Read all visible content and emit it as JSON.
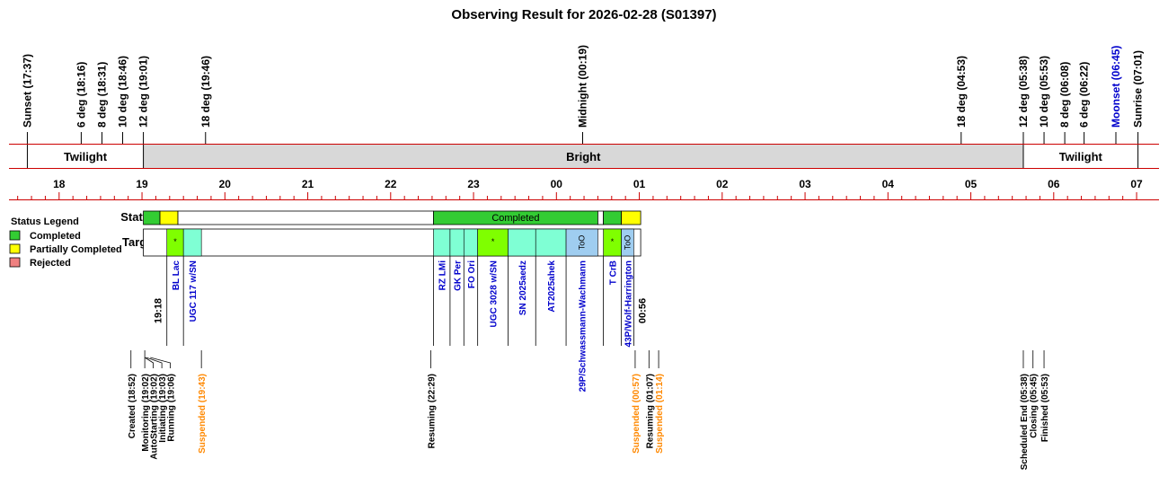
{
  "title": "Observing Result for 2026-02-28 (S01397)",
  "colors": {
    "completed": "#33cc33",
    "partial": "#ffff00",
    "rejected": "#f08080",
    "target_cyan": "#7fffd4",
    "target_green": "#7fff00",
    "target_too": "#9fcdf0",
    "bright_band": "#d8d8d8",
    "red_line": "#cc0000",
    "blue_text": "#0000cc",
    "orange_text": "#ff8800"
  },
  "chart_data": {
    "type": "table",
    "time_axis": {
      "start": "17:30",
      "end": "07:05",
      "hour_labels": [
        "18",
        "19",
        "20",
        "21",
        "22",
        "23",
        "00",
        "01",
        "02",
        "03",
        "04",
        "05",
        "06",
        "07"
      ]
    },
    "events": [
      {
        "label": "Sunset (17:37)",
        "time": "17:37",
        "color": "black"
      },
      {
        "label": "6 deg (18:16)",
        "time": "18:16",
        "color": "black"
      },
      {
        "label": "8 deg (18:31)",
        "time": "18:31",
        "color": "black"
      },
      {
        "label": "10 deg (18:46)",
        "time": "18:46",
        "color": "black"
      },
      {
        "label": "12 deg (19:01)",
        "time": "19:01",
        "color": "black"
      },
      {
        "label": "18 deg (19:46)",
        "time": "19:46",
        "color": "black"
      },
      {
        "label": "Midnight (00:19)",
        "time": "00:19",
        "color": "black"
      },
      {
        "label": "18 deg (04:53)",
        "time": "04:53",
        "color": "black"
      },
      {
        "label": "12 deg (05:38)",
        "time": "05:38",
        "color": "black"
      },
      {
        "label": "10 deg (05:53)",
        "time": "05:53",
        "color": "black"
      },
      {
        "label": "8 deg (06:08)",
        "time": "06:08",
        "color": "black"
      },
      {
        "label": "6 deg (06:22)",
        "time": "06:22",
        "color": "black"
      },
      {
        "label": "Moonset (06:45)",
        "time": "06:45",
        "color": "blue"
      },
      {
        "label": "Sunrise (07:01)",
        "time": "07:01",
        "color": "black"
      }
    ],
    "bands": [
      {
        "label": "Twilight",
        "start": "17:37",
        "end": "19:01",
        "shade": "white"
      },
      {
        "label": "Bright",
        "start": "19:01",
        "end": "05:38",
        "shade": "gray"
      },
      {
        "label": "Twilight",
        "start": "05:38",
        "end": "07:01",
        "shade": "white"
      }
    ],
    "row_labels": {
      "status": "Status",
      "targets": "Targets"
    },
    "legend": {
      "title": "Status Legend",
      "placement": "left",
      "items": [
        {
          "label": "Completed",
          "color": "#33cc33"
        },
        {
          "label": "Partially Completed",
          "color": "#ffff00"
        },
        {
          "label": "Rejected",
          "color": "#f08080"
        }
      ]
    },
    "status": [
      {
        "start": "19:01",
        "end": "19:13",
        "status": "completed",
        "label": ""
      },
      {
        "start": "19:13",
        "end": "19:26",
        "status": "partial",
        "label": ""
      },
      {
        "start": "19:26",
        "end": "22:31",
        "status": "none",
        "label": ""
      },
      {
        "start": "22:31",
        "end": "00:30",
        "status": "completed",
        "label": "Completed"
      },
      {
        "start": "00:30",
        "end": "00:34",
        "status": "none",
        "label": ""
      },
      {
        "start": "00:34",
        "end": "00:47",
        "status": "completed",
        "label": ""
      },
      {
        "start": "00:47",
        "end": "01:01",
        "status": "partial",
        "label": ""
      }
    ],
    "targets": [
      {
        "name": "BL Lac",
        "start": "19:18",
        "end": "19:30",
        "type": "green",
        "mark": "*"
      },
      {
        "name": "UGC 117 w/SN",
        "start": "19:30",
        "end": "19:43",
        "type": "cyan",
        "mark": ""
      },
      {
        "name": "RZ LMi",
        "start": "22:31",
        "end": "22:43",
        "type": "cyan",
        "mark": ""
      },
      {
        "name": "GK Per",
        "start": "22:43",
        "end": "22:53",
        "type": "cyan",
        "mark": ""
      },
      {
        "name": "FO Ori",
        "start": "22:53",
        "end": "23:03",
        "type": "cyan",
        "mark": ""
      },
      {
        "name": "UGC 3028 w/SN",
        "start": "23:03",
        "end": "23:25",
        "type": "green",
        "mark": "*"
      },
      {
        "name": "SN 2025aedz",
        "start": "23:25",
        "end": "23:45",
        "type": "cyan",
        "mark": ""
      },
      {
        "name": "AT2025ahek",
        "start": "23:45",
        "end": "24:07",
        "type": "cyan",
        "mark": ""
      },
      {
        "name": "29P/Schwassmann-Wachmann",
        "start": "24:07",
        "end": "24:30",
        "type": "too",
        "mark": "ToO"
      },
      {
        "name": "T CrB",
        "start": "24:34",
        "end": "24:47",
        "type": "green",
        "mark": "*"
      },
      {
        "name": "43P/Wolf-Harrington",
        "start": "24:47",
        "end": "24:56",
        "type": "too",
        "mark": "ToO"
      }
    ],
    "time_markers": [
      {
        "label": "19:18",
        "time": "19:18",
        "side": "left"
      },
      {
        "label": "00:56",
        "time": "00:56",
        "side": "right"
      }
    ],
    "log": [
      {
        "label": "Created (18:52)",
        "time": "18:52",
        "color": "black"
      },
      {
        "label": "Monitoring (19:02)",
        "time": "19:02",
        "color": "black"
      },
      {
        "label": "AutoStarting (19:02)",
        "time": "19:02",
        "color": "black"
      },
      {
        "label": "Initiating (19:03)",
        "time": "19:03",
        "color": "black"
      },
      {
        "label": "Running (19:06)",
        "time": "19:06",
        "color": "black"
      },
      {
        "label": "Suspended (19:43)",
        "time": "19:43",
        "color": "orange"
      },
      {
        "label": "Resuming (22:29)",
        "time": "22:29",
        "color": "black"
      },
      {
        "label": "Suspended (00:57)",
        "time": "00:57",
        "color": "orange"
      },
      {
        "label": "Resuming (01:07)",
        "time": "01:07",
        "color": "black"
      },
      {
        "label": "Suspended (01:14)",
        "time": "01:14",
        "color": "orange"
      },
      {
        "label": "Scheduled End (05:38)",
        "time": "05:38",
        "color": "black"
      },
      {
        "label": "Closing (05:45)",
        "time": "05:45",
        "color": "black"
      },
      {
        "label": "Finished (05:53)",
        "time": "05:53",
        "color": "black"
      }
    ]
  }
}
